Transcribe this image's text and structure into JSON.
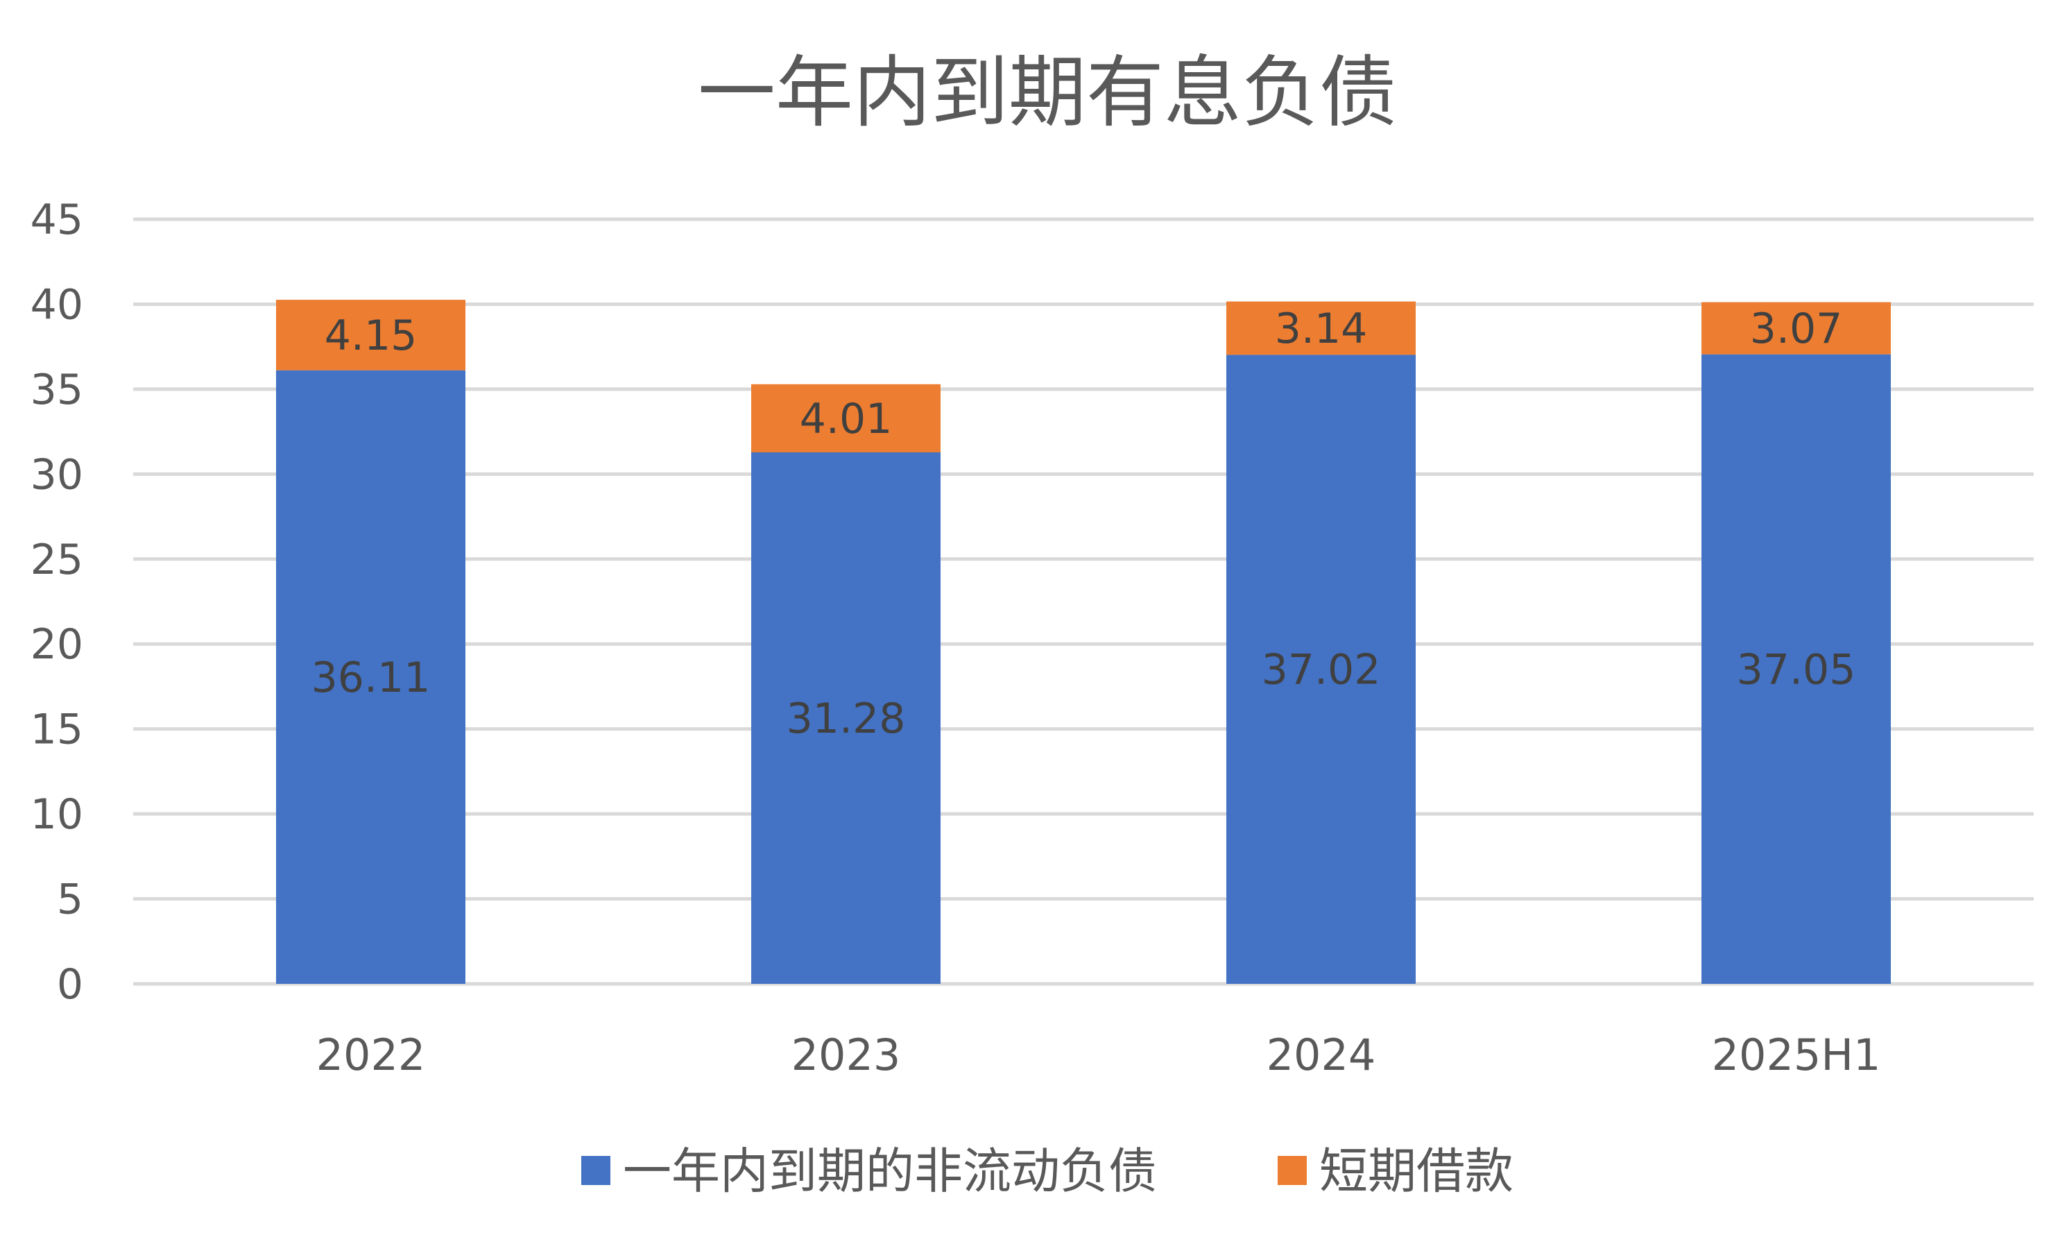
{
  "chart_data": {
    "type": "bar",
    "stacked": true,
    "title": "一年内到期有息负债",
    "categories": [
      "2022",
      "2023",
      "2024",
      "2025H1"
    ],
    "series": [
      {
        "name": "一年内到期的非流动负债",
        "values": [
          36.11,
          31.28,
          37.02,
          37.05
        ],
        "color": "#4472C4"
      },
      {
        "name": "短期借款",
        "values": [
          4.15,
          4.01,
          3.14,
          3.07
        ],
        "color": "#ED7D31"
      }
    ],
    "ylim": [
      0,
      45
    ],
    "yticks": [
      0,
      5,
      10,
      15,
      20,
      25,
      30,
      35,
      40,
      45
    ],
    "grid": true,
    "legend": "bottom",
    "xlabel": "",
    "ylabel": ""
  }
}
